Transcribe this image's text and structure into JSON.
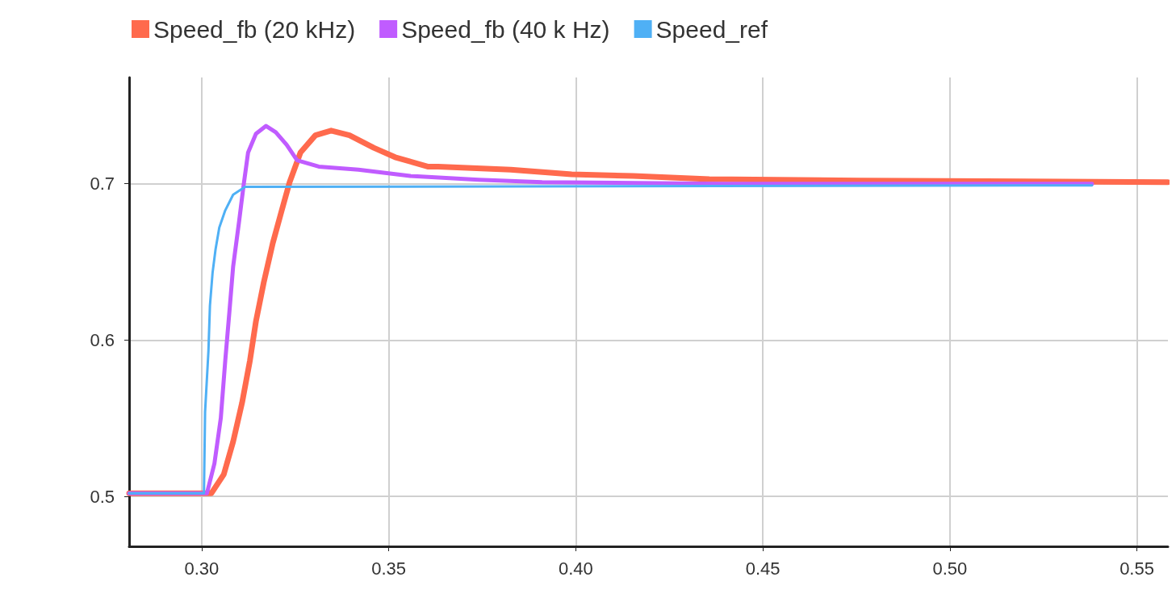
{
  "chart_data": {
    "type": "line",
    "xlim": [
      0.2806,
      0.5583
    ],
    "ylim": [
      0.468,
      0.768
    ],
    "xticks": [
      {
        "value": 0.3,
        "label": "0.30"
      },
      {
        "value": 0.35,
        "label": "0.35"
      },
      {
        "value": 0.4,
        "label": "0.40"
      },
      {
        "value": 0.45,
        "label": "0.45"
      },
      {
        "value": 0.5,
        "label": "0.50"
      },
      {
        "value": 0.55,
        "label": "0.55"
      }
    ],
    "yticks": [
      0.5,
      0.6,
      0.7
    ],
    "grid": true,
    "legend": "top left",
    "marker": "none",
    "line_style": "solid",
    "series": [
      {
        "name": "Speed_fb (20 kHz)",
        "color": "#ff6a4d",
        "x": [
          0.2806,
          0.3,
          0.3026,
          0.3059,
          0.3084,
          0.3108,
          0.3129,
          0.3145,
          0.3166,
          0.319,
          0.3214,
          0.3235,
          0.3264,
          0.3304,
          0.3346,
          0.3395,
          0.346,
          0.3517,
          0.3604,
          0.3632,
          0.3826,
          0.3989,
          0.4153,
          0.4357,
          0.476,
          0.5583
        ],
        "values": [
          0.502,
          0.502,
          0.502,
          0.514,
          0.535,
          0.56,
          0.587,
          0.612,
          0.637,
          0.662,
          0.683,
          0.701,
          0.72,
          0.731,
          0.734,
          0.731,
          0.723,
          0.717,
          0.711,
          0.711,
          0.709,
          0.706,
          0.705,
          0.703,
          0.702,
          0.701
        ]
      },
      {
        "name": "Speed_fb (40 k Hz)",
        "color": "#c05cff",
        "x": [
          0.2806,
          0.3,
          0.3014,
          0.3034,
          0.3051,
          0.3063,
          0.3074,
          0.3084,
          0.31,
          0.3112,
          0.3124,
          0.3145,
          0.3172,
          0.3198,
          0.3227,
          0.3255,
          0.3313,
          0.3419,
          0.3557,
          0.374,
          0.391,
          0.44,
          0.538
        ],
        "values": [
          0.502,
          0.502,
          0.502,
          0.521,
          0.55,
          0.587,
          0.618,
          0.647,
          0.676,
          0.699,
          0.72,
          0.732,
          0.737,
          0.733,
          0.725,
          0.715,
          0.711,
          0.709,
          0.705,
          0.7025,
          0.701,
          0.7,
          0.7
        ]
      },
      {
        "name": "Speed_ref",
        "color": "#4fb0f5",
        "x": [
          0.2806,
          0.3,
          0.3006,
          0.3009,
          0.3018,
          0.3022,
          0.3029,
          0.3037,
          0.3047,
          0.3063,
          0.3084,
          0.3116,
          0.538
        ],
        "values": [
          0.502,
          0.502,
          0.502,
          0.554,
          0.593,
          0.622,
          0.643,
          0.658,
          0.672,
          0.683,
          0.693,
          0.698,
          0.699
        ]
      }
    ]
  }
}
